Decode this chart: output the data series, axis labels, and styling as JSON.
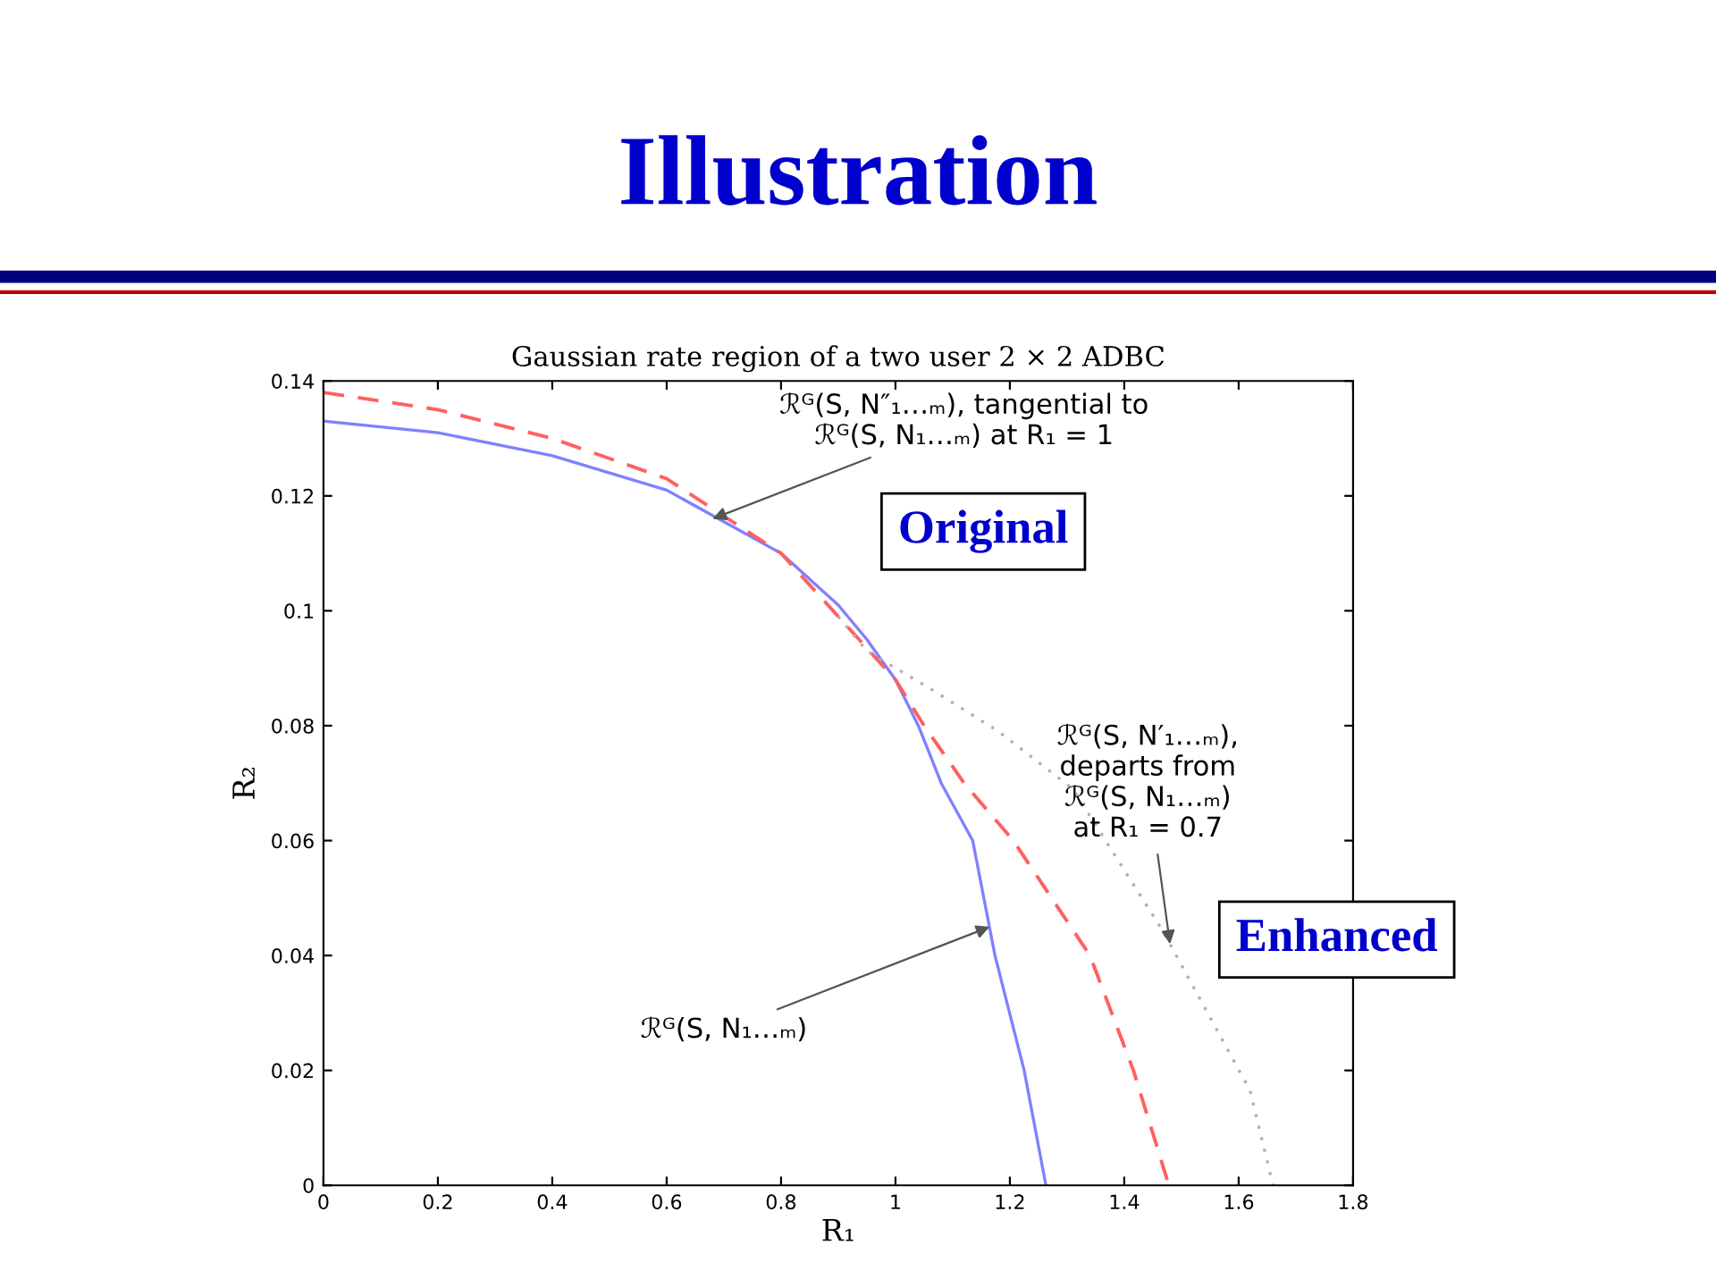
{
  "chart_data": {
    "type": "line",
    "title": "Illustration",
    "subtitle": "Gaussian rate region of a two user 2 × 2 ADBC",
    "xlabel": "R₁",
    "ylabel": "R₂",
    "series": [
      {
        "color": "#8080ff",
        "line_style": "solid",
        "x": [
          0,
          0.2,
          0.4,
          0.6,
          0.8,
          0.9,
          0.95,
          1,
          1.04,
          1.08,
          1.135,
          1.174,
          1.225,
          1.263
        ],
        "values": [
          0.133,
          0.131,
          0.127,
          0.121,
          0.11,
          0.101,
          0.095,
          0.088,
          0.08,
          0.07,
          0.06,
          0.04,
          0.02,
          0
        ]
      },
      {
        "color": "#ff6060",
        "line_style": "dashed",
        "x": [
          0,
          0.2,
          0.4,
          0.6,
          0.8,
          1,
          1.05,
          1.12,
          1.206,
          1.34,
          1.416,
          1.478
        ],
        "values": [
          0.138,
          0.135,
          0.13,
          0.123,
          0.11,
          0.088,
          0.08,
          0.07,
          0.06,
          0.04,
          0.02,
          0
        ]
      },
      {
        "color": "#b0b0b0",
        "line_style": "dotted",
        "x": [
          0.9,
          0.95,
          1.06,
          1.18,
          1.31,
          1.466,
          1.62,
          1.66
        ],
        "values": [
          0.099,
          0.093,
          0.0865,
          0.079,
          0.069,
          0.0445,
          0.0165,
          0
        ]
      }
    ],
    "xlim": [
      0,
      1.8
    ],
    "ylim": [
      0,
      0.14
    ],
    "xticks": [
      0,
      0.2,
      0.4,
      0.6,
      0.8,
      1,
      1.2,
      1.4,
      1.6,
      1.8
    ],
    "yticks": [
      0,
      0.02,
      0.04,
      0.06,
      0.08,
      0.1,
      0.12,
      0.14
    ],
    "grid": false,
    "legend": false,
    "annotations": [
      {
        "text": "ℛᴳ(S, N″₁…ₘ), tangential to\nℛᴳ(S, N₁…ₘ) at R₁ = 1",
        "x": 0.68,
        "y": 0.116
      },
      {
        "text": "ℛᴳ(S, N′₁…ₘ),\ndeparts from\nℛᴳ(S, N₁…ₘ)\nat R₁ = 0.7",
        "x": 1.48,
        "y": 0.042
      },
      {
        "text": "ℛᴳ(S, N₁…ₘ)",
        "x": 1.165,
        "y": 0.045
      },
      "Original",
      "Enhanced"
    ]
  }
}
